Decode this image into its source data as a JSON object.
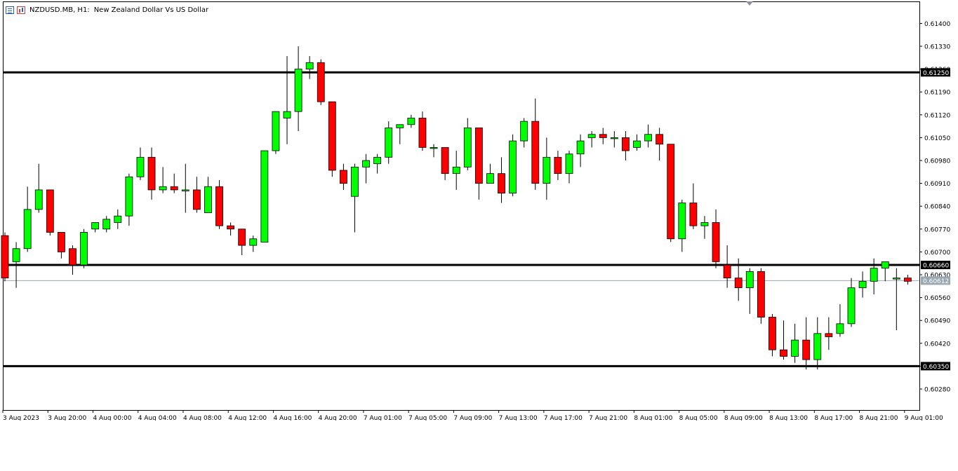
{
  "header": {
    "symbol": "NZDUSD.MB, H1:",
    "description": "New Zealand Dollar Vs US Dollar",
    "icons": [
      "chart-list-icon",
      "candle-mode-icon"
    ]
  },
  "colors": {
    "bull": "#00ff00",
    "bear": "#ff0000",
    "outline": "#000000",
    "hline": "#000000",
    "bid_line": "#9aa8b4",
    "bid_label_bg": "#9aa8b4"
  },
  "chart_data": {
    "type": "candlestick",
    "symbol": "NZDUSD.MB",
    "timeframe": "H1",
    "grid": false,
    "ylim": [
      0.6022,
      0.6145
    ],
    "y_ticks": [
      "0.61400",
      "0.61330",
      "0.61260",
      "0.61190",
      "0.61120",
      "0.61050",
      "0.60980",
      "0.60910",
      "0.60840",
      "0.60770",
      "0.60700",
      "0.60630",
      "0.60560",
      "0.60490",
      "0.60420",
      "0.60350",
      "0.60280"
    ],
    "x_labels": [
      "3 Aug 2023",
      "3 Aug 20:00",
      "4 Aug 00:00",
      "4 Aug 04:00",
      "4 Aug 08:00",
      "4 Aug 12:00",
      "4 Aug 16:00",
      "4 Aug 20:00",
      "7 Aug 01:00",
      "7 Aug 05:00",
      "7 Aug 09:00",
      "7 Aug 13:00",
      "7 Aug 17:00",
      "7 Aug 21:00",
      "8 Aug 01:00",
      "8 Aug 05:00",
      "8 Aug 09:00",
      "8 Aug 13:00",
      "8 Aug 17:00",
      "8 Aug 21:00",
      "9 Aug 01:00"
    ],
    "horizontal_lines": [
      {
        "price": 0.6125,
        "label": "0.61250"
      },
      {
        "price": 0.6066,
        "label": "0.60660"
      },
      {
        "price": 0.6035,
        "label": "0.60350"
      }
    ],
    "current_price": {
      "price": 0.60612,
      "label": "0.60612"
    },
    "candles": [
      {
        "o": 0.6075,
        "h": 0.6076,
        "l": 0.6061,
        "c": 0.6062
      },
      {
        "o": 0.6067,
        "h": 0.6073,
        "l": 0.6059,
        "c": 0.6071
      },
      {
        "o": 0.6071,
        "h": 0.609,
        "l": 0.607,
        "c": 0.6083
      },
      {
        "o": 0.6083,
        "h": 0.6097,
        "l": 0.6082,
        "c": 0.6089
      },
      {
        "o": 0.6089,
        "h": 0.6089,
        "l": 0.6075,
        "c": 0.6076
      },
      {
        "o": 0.6076,
        "h": 0.6076,
        "l": 0.6068,
        "c": 0.607
      },
      {
        "o": 0.6071,
        "h": 0.6072,
        "l": 0.6063,
        "c": 0.6066
      },
      {
        "o": 0.6066,
        "h": 0.6077,
        "l": 0.6065,
        "c": 0.6076
      },
      {
        "o": 0.6077,
        "h": 0.6079,
        "l": 0.6076,
        "c": 0.6079
      },
      {
        "o": 0.6077,
        "h": 0.6081,
        "l": 0.6076,
        "c": 0.608
      },
      {
        "o": 0.6079,
        "h": 0.6083,
        "l": 0.6077,
        "c": 0.6081
      },
      {
        "o": 0.6081,
        "h": 0.6094,
        "l": 0.6078,
        "c": 0.6093
      },
      {
        "o": 0.6093,
        "h": 0.6102,
        "l": 0.6092,
        "c": 0.6099
      },
      {
        "o": 0.6099,
        "h": 0.6102,
        "l": 0.6086,
        "c": 0.6089
      },
      {
        "o": 0.6089,
        "h": 0.6096,
        "l": 0.6088,
        "c": 0.609
      },
      {
        "o": 0.609,
        "h": 0.6094,
        "l": 0.6088,
        "c": 0.6089
      },
      {
        "o": 0.6089,
        "h": 0.6097,
        "l": 0.6082,
        "c": 0.6089
      },
      {
        "o": 0.6089,
        "h": 0.6093,
        "l": 0.6082,
        "c": 0.6083
      },
      {
        "o": 0.6082,
        "h": 0.6093,
        "l": 0.6082,
        "c": 0.609
      },
      {
        "o": 0.609,
        "h": 0.6092,
        "l": 0.6077,
        "c": 0.6078
      },
      {
        "o": 0.6078,
        "h": 0.6079,
        "l": 0.6075,
        "c": 0.6077
      },
      {
        "o": 0.6077,
        "h": 0.6077,
        "l": 0.6069,
        "c": 0.6072
      },
      {
        "o": 0.6072,
        "h": 0.6075,
        "l": 0.607,
        "c": 0.6074
      },
      {
        "o": 0.6073,
        "h": 0.6101,
        "l": 0.6073,
        "c": 0.6101
      },
      {
        "o": 0.6101,
        "h": 0.6113,
        "l": 0.61,
        "c": 0.6113
      },
      {
        "o": 0.6111,
        "h": 0.613,
        "l": 0.6103,
        "c": 0.6113
      },
      {
        "o": 0.6113,
        "h": 0.6133,
        "l": 0.6107,
        "c": 0.6126
      },
      {
        "o": 0.6126,
        "h": 0.613,
        "l": 0.6123,
        "c": 0.6128
      },
      {
        "o": 0.6128,
        "h": 0.6129,
        "l": 0.6115,
        "c": 0.6116
      },
      {
        "o": 0.6116,
        "h": 0.6116,
        "l": 0.6093,
        "c": 0.6095
      },
      {
        "o": 0.6095,
        "h": 0.6097,
        "l": 0.6089,
        "c": 0.6091
      },
      {
        "o": 0.6087,
        "h": 0.6097,
        "l": 0.6076,
        "c": 0.6096
      },
      {
        "o": 0.6096,
        "h": 0.61,
        "l": 0.6091,
        "c": 0.6098
      },
      {
        "o": 0.6097,
        "h": 0.61,
        "l": 0.6094,
        "c": 0.6099
      },
      {
        "o": 0.6099,
        "h": 0.611,
        "l": 0.6097,
        "c": 0.6108
      },
      {
        "o": 0.6108,
        "h": 0.6109,
        "l": 0.6103,
        "c": 0.6109
      },
      {
        "o": 0.6109,
        "h": 0.6112,
        "l": 0.6108,
        "c": 0.6111
      },
      {
        "o": 0.6111,
        "h": 0.6113,
        "l": 0.6101,
        "c": 0.6102
      },
      {
        "o": 0.6102,
        "h": 0.6103,
        "l": 0.6099,
        "c": 0.6102
      },
      {
        "o": 0.6102,
        "h": 0.6102,
        "l": 0.6092,
        "c": 0.6094
      },
      {
        "o": 0.6094,
        "h": 0.6101,
        "l": 0.6089,
        "c": 0.6096
      },
      {
        "o": 0.6096,
        "h": 0.6111,
        "l": 0.6095,
        "c": 0.6108
      },
      {
        "o": 0.6108,
        "h": 0.6108,
        "l": 0.6086,
        "c": 0.6091
      },
      {
        "o": 0.6091,
        "h": 0.6097,
        "l": 0.6091,
        "c": 0.6094
      },
      {
        "o": 0.6094,
        "h": 0.6099,
        "l": 0.6085,
        "c": 0.6088
      },
      {
        "o": 0.6088,
        "h": 0.6106,
        "l": 0.6087,
        "c": 0.6104
      },
      {
        "o": 0.6104,
        "h": 0.6111,
        "l": 0.6102,
        "c": 0.611
      },
      {
        "o": 0.611,
        "h": 0.6117,
        "l": 0.6089,
        "c": 0.6091
      },
      {
        "o": 0.6091,
        "h": 0.6105,
        "l": 0.6086,
        "c": 0.6099
      },
      {
        "o": 0.6099,
        "h": 0.6101,
        "l": 0.6092,
        "c": 0.6094
      },
      {
        "o": 0.6094,
        "h": 0.6101,
        "l": 0.6091,
        "c": 0.61
      },
      {
        "o": 0.61,
        "h": 0.6106,
        "l": 0.6096,
        "c": 0.6104
      },
      {
        "o": 0.6105,
        "h": 0.6107,
        "l": 0.6102,
        "c": 0.6106
      },
      {
        "o": 0.6106,
        "h": 0.6108,
        "l": 0.6103,
        "c": 0.6105
      },
      {
        "o": 0.6105,
        "h": 0.6107,
        "l": 0.6102,
        "c": 0.6105
      },
      {
        "o": 0.6105,
        "h": 0.6107,
        "l": 0.6098,
        "c": 0.6101
      },
      {
        "o": 0.6102,
        "h": 0.6106,
        "l": 0.6101,
        "c": 0.6104
      },
      {
        "o": 0.6104,
        "h": 0.6109,
        "l": 0.6102,
        "c": 0.6106
      },
      {
        "o": 0.6106,
        "h": 0.6108,
        "l": 0.6098,
        "c": 0.6103
      },
      {
        "o": 0.6103,
        "h": 0.6103,
        "l": 0.6073,
        "c": 0.6074
      },
      {
        "o": 0.6074,
        "h": 0.6086,
        "l": 0.607,
        "c": 0.6085
      },
      {
        "o": 0.6085,
        "h": 0.6091,
        "l": 0.6077,
        "c": 0.6078
      },
      {
        "o": 0.6078,
        "h": 0.6081,
        "l": 0.6074,
        "c": 0.6079
      },
      {
        "o": 0.6079,
        "h": 0.6083,
        "l": 0.6065,
        "c": 0.6067
      },
      {
        "o": 0.6066,
        "h": 0.6072,
        "l": 0.6059,
        "c": 0.6062
      },
      {
        "o": 0.6062,
        "h": 0.6068,
        "l": 0.6055,
        "c": 0.6059
      },
      {
        "o": 0.6059,
        "h": 0.6065,
        "l": 0.6051,
        "c": 0.6064
      },
      {
        "o": 0.6064,
        "h": 0.6065,
        "l": 0.6048,
        "c": 0.605
      },
      {
        "o": 0.605,
        "h": 0.6051,
        "l": 0.6038,
        "c": 0.604
      },
      {
        "o": 0.604,
        "h": 0.6049,
        "l": 0.6037,
        "c": 0.6038
      },
      {
        "o": 0.6038,
        "h": 0.6048,
        "l": 0.6036,
        "c": 0.6043
      },
      {
        "o": 0.6043,
        "h": 0.605,
        "l": 0.6034,
        "c": 0.6037
      },
      {
        "o": 0.6037,
        "h": 0.605,
        "l": 0.6034,
        "c": 0.6045
      },
      {
        "o": 0.6045,
        "h": 0.605,
        "l": 0.604,
        "c": 0.6044
      },
      {
        "o": 0.6045,
        "h": 0.6054,
        "l": 0.6044,
        "c": 0.6048
      },
      {
        "o": 0.6048,
        "h": 0.6062,
        "l": 0.6047,
        "c": 0.6059
      },
      {
        "o": 0.6059,
        "h": 0.6064,
        "l": 0.6056,
        "c": 0.6061
      },
      {
        "o": 0.6061,
        "h": 0.6068,
        "l": 0.6057,
        "c": 0.6065
      },
      {
        "o": 0.6065,
        "h": 0.6067,
        "l": 0.6061,
        "c": 0.6067
      },
      {
        "o": 0.6062,
        "h": 0.6065,
        "l": 0.6046,
        "c": 0.6062
      },
      {
        "o": 0.6062,
        "h": 0.6063,
        "l": 0.606,
        "c": 0.6061
      }
    ]
  }
}
